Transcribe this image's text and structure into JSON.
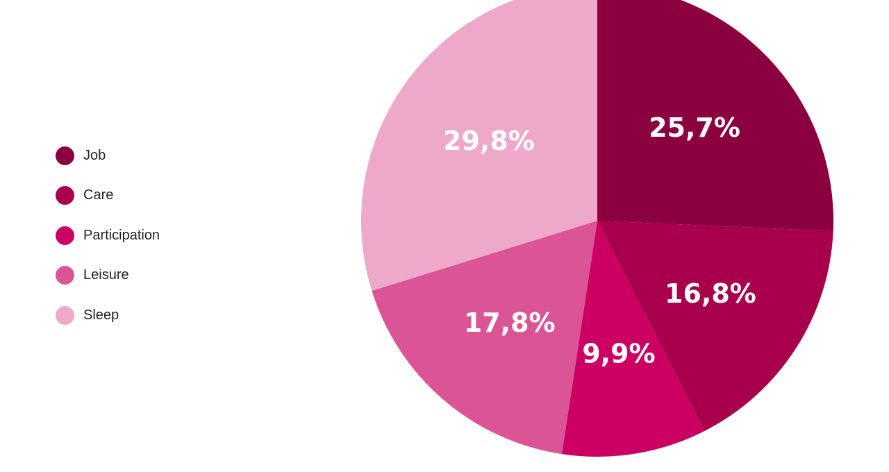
{
  "chart_data": {
    "type": "pie",
    "categories": [
      "Job",
      "Care",
      "Participation",
      "Leisure",
      "Sleep"
    ],
    "values": [
      25.7,
      16.8,
      9.9,
      17.8,
      29.8
    ],
    "labels": [
      "25,7%",
      "16,8%",
      "9,9%",
      "17,8%",
      "29,8%"
    ],
    "colors": [
      "#8b003f",
      "#a8004d",
      "#cc0063",
      "#db5596",
      "#eda8ca"
    ],
    "legend": "left",
    "start": "12 o'clock",
    "direction": "clockwise"
  }
}
